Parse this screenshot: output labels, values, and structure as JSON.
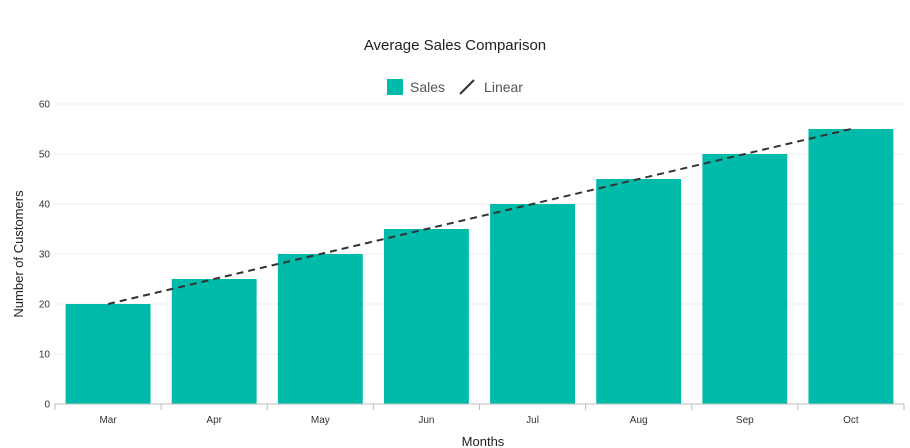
{
  "chart_data": {
    "type": "bar",
    "title": "Average Sales Comparison",
    "xlabel": "Months",
    "ylabel": "Number of Customers",
    "categories": [
      "Mar",
      "Apr",
      "May",
      "Jun",
      "Jul",
      "Aug",
      "Sep",
      "Oct"
    ],
    "series": [
      {
        "name": "Sales",
        "type": "bar",
        "values": [
          20,
          25,
          30,
          35,
          40,
          45,
          50,
          55
        ],
        "color": "#00BBA9"
      },
      {
        "name": "Linear",
        "type": "trendline",
        "values": [
          20,
          25,
          30,
          35,
          40,
          45,
          50,
          55
        ],
        "color": "#333333",
        "dash": "dashed"
      }
    ],
    "ylim": [
      0,
      60
    ],
    "yticks": [
      0,
      10,
      20,
      30,
      40,
      50,
      60
    ],
    "grid": true,
    "legend": "top-center"
  }
}
